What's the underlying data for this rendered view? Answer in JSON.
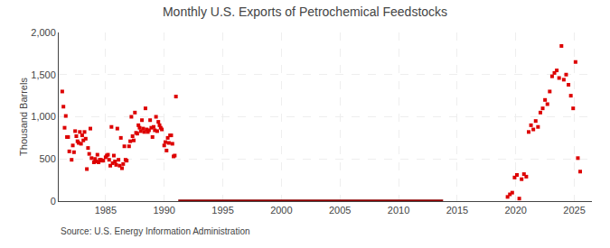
{
  "chart_data": {
    "type": "scatter",
    "title": "Monthly U.S. Exports of Petrochemical Feedstocks",
    "ylabel": "Thousand Barrels",
    "annotations": [
      "Source: U.S. Energy Information Administration"
    ],
    "xlim": [
      1981.0,
      2026.5
    ],
    "ylim": [
      0,
      2000
    ],
    "xticks": [
      1985,
      1990,
      1995,
      2000,
      2005,
      2010,
      2015,
      2020,
      2025
    ],
    "yticks": [
      0,
      500,
      {
        "value": 1000,
        "label": "1,000"
      },
      {
        "value": 1500,
        "label": "1,500"
      },
      {
        "value": 2000,
        "label": "2,000"
      }
    ],
    "grid": true,
    "series": [
      {
        "type": "scatter",
        "color": "#dd0000",
        "marker": "square",
        "x": [
          1981.3,
          1981.5,
          1981.7,
          1981.9,
          1982.1,
          1982.2,
          1982.4,
          1982.6,
          1982.7,
          1982.9,
          1983.0,
          1983.2,
          1983.3,
          1983.5,
          1983.6,
          1983.8,
          1984.0,
          1984.1,
          1984.3,
          1984.5,
          1984.6,
          1984.8,
          1985.0,
          1985.1,
          1985.3,
          1985.4,
          1985.6,
          1985.8,
          1985.9,
          1986.1,
          1986.2,
          1986.4,
          1986.5,
          1986.7,
          1986.8,
          1987.0,
          1987.1,
          1987.3,
          1987.4,
          1987.6,
          1987.7,
          1987.9,
          1988.0,
          1988.2,
          1988.3,
          1988.5,
          1988.6,
          1988.8,
          1988.9,
          1989.1,
          1989.2,
          1989.4,
          1989.5,
          1989.7,
          1989.8,
          1990.0,
          1990.1,
          1990.3,
          1990.4,
          1990.6,
          1990.7,
          1990.9,
          1991.0,
          1981.4,
          1981.8,
          1982.3,
          1982.8,
          1983.1,
          1983.7,
          1984.2,
          1984.7,
          1985.2,
          1985.7,
          1986.0,
          1986.6,
          1987.2,
          1987.8,
          1988.1,
          1988.7,
          1989.0,
          1989.6,
          1990.2,
          1990.8,
          1981.6,
          1982.5,
          1983.4,
          1984.4,
          1985.5,
          1986.3,
          1987.5,
          1988.4,
          1989.3,
          1990.5
        ],
        "values": [
          1300,
          870,
          760,
          590,
          490,
          660,
          830,
          710,
          690,
          680,
          780,
          820,
          740,
          630,
          560,
          510,
          460,
          500,
          550,
          490,
          490,
          480,
          520,
          540,
          490,
          420,
          450,
          470,
          430,
          490,
          420,
          390,
          440,
          490,
          480,
          650,
          710,
          770,
          720,
          810,
          800,
          870,
          830,
          860,
          820,
          850,
          820,
          960,
          870,
          880,
          840,
          830,
          940,
          870,
          850,
          660,
          700,
          750,
          690,
          780,
          680,
          540,
          1240,
          1120,
          760,
          580,
          820,
          720,
          860,
          470,
          480,
          550,
          540,
          860,
          650,
          1000,
          900,
          960,
          840,
          760,
          900,
          600,
          530,
          1010,
          770,
          380,
          460,
          880,
          750,
          1050,
          1100,
          1000,
          780
        ]
      },
      {
        "type": "scatter",
        "color": "#dd0000",
        "marker": "square",
        "x": [
          2019.3,
          2019.5,
          2019.7,
          2019.9,
          2020.1,
          2020.3,
          2020.5,
          2020.7,
          2020.9,
          2021.1,
          2021.3,
          2021.5,
          2021.7,
          2021.9,
          2022.1,
          2022.3,
          2022.5,
          2022.7,
          2022.9,
          2023.1,
          2023.3,
          2023.5,
          2023.7,
          2023.9,
          2024.1,
          2024.3,
          2024.5,
          2024.7,
          2024.9,
          2025.1,
          2025.3,
          2025.5
        ],
        "values": [
          50,
          80,
          100,
          280,
          310,
          30,
          260,
          320,
          290,
          820,
          900,
          850,
          950,
          880,
          1050,
          1100,
          1200,
          1150,
          1300,
          1480,
          1520,
          1550,
          1460,
          1840,
          1440,
          1500,
          1380,
          1250,
          1100,
          1650,
          510,
          350
        ]
      },
      {
        "type": "line",
        "color": "#8b0000",
        "line_style": "solid",
        "x": [
          1991.2,
          2013.8
        ],
        "values": [
          0,
          0
        ]
      }
    ]
  }
}
